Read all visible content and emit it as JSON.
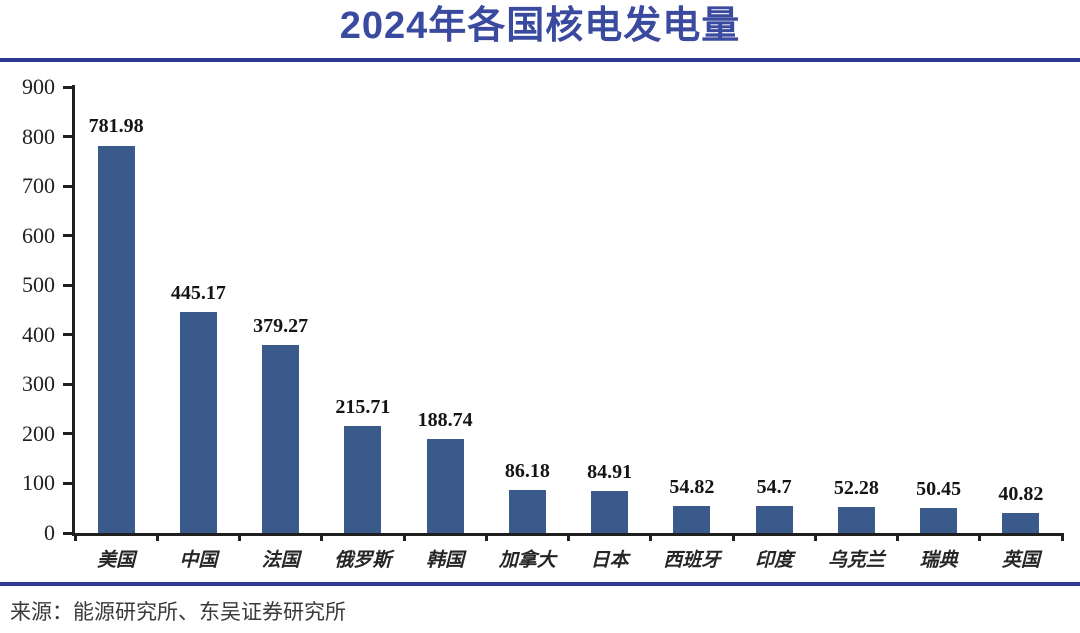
{
  "title": "2024年各国核电发电量",
  "source": "来源：能源研究所、东吴证券研究所",
  "colors": {
    "bar": "#3A5A8C",
    "title_text": "#3A4A9F",
    "rule": "#2E3991",
    "axis": "#1f1f1f"
  },
  "chart_data": {
    "type": "bar",
    "title": "2024年各国核电发电量",
    "categories": [
      "美国",
      "中国",
      "法国",
      "俄罗斯",
      "韩国",
      "加拿大",
      "日本",
      "西班牙",
      "印度",
      "乌克兰",
      "瑞典",
      "英国"
    ],
    "values": [
      781.98,
      445.17,
      379.27,
      215.71,
      188.74,
      86.18,
      84.91,
      54.82,
      54.7,
      52.28,
      50.45,
      40.82
    ],
    "value_labels": [
      "781.98",
      "445.17",
      "379.27",
      "215.71",
      "188.74",
      "86.18",
      "84.91",
      "54.82",
      "54.7",
      "52.28",
      "50.45",
      "40.82"
    ],
    "xlabel": "",
    "ylabel": "",
    "ylim": [
      0,
      900
    ],
    "yticks": [
      0,
      100,
      200,
      300,
      400,
      500,
      600,
      700,
      800,
      900
    ],
    "grid": false,
    "legend": false,
    "bar_color": "#3A5A8C"
  }
}
